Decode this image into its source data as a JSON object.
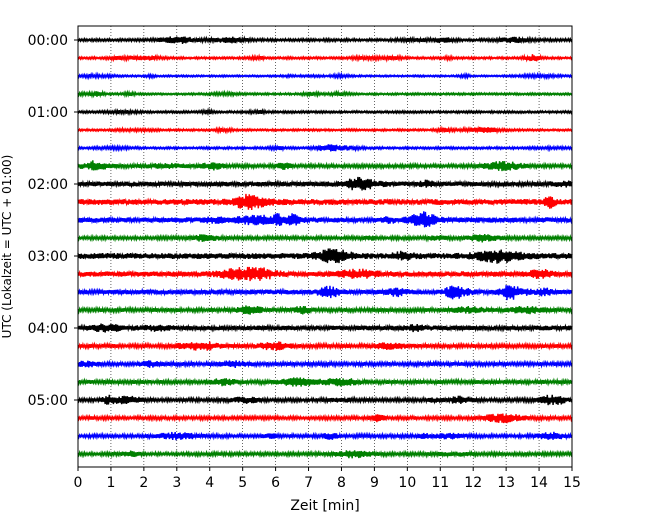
{
  "chart_data": {
    "type": "line",
    "title": "",
    "xlabel": "Zeit  [min]",
    "ylabel": "UTC (Lokalzeit = UTC + 01:00)",
    "xlim": [
      0,
      15
    ],
    "x_ticks": [
      "0",
      "1",
      "2",
      "3",
      "4",
      "5",
      "6",
      "7",
      "8",
      "9",
      "10",
      "11",
      "12",
      "13",
      "14",
      "15"
    ],
    "y_ticks": [
      "00:00",
      "01:00",
      "02:00",
      "03:00",
      "04:00",
      "05:00"
    ],
    "grid": "vertical dotted lines at each minute",
    "legend": "none",
    "trace_interval_min": 15,
    "trace_colors": [
      "#000000",
      "#ff0000",
      "#0000ff",
      "#008000"
    ],
    "series": [
      {
        "start": "00:00",
        "color": "#000000",
        "amplitude": 0.6
      },
      {
        "start": "00:15",
        "color": "#ff0000",
        "amplitude": 0.5
      },
      {
        "start": "00:30",
        "color": "#0000ff",
        "amplitude": 0.4
      },
      {
        "start": "00:45",
        "color": "#008000",
        "amplitude": 0.45
      },
      {
        "start": "01:00",
        "color": "#000000",
        "amplitude": 0.5
      },
      {
        "start": "01:15",
        "color": "#ff0000",
        "amplitude": 0.45
      },
      {
        "start": "01:30",
        "color": "#0000ff",
        "amplitude": 0.5
      },
      {
        "start": "01:45",
        "color": "#008000",
        "amplitude": 0.8
      },
      {
        "start": "02:00",
        "color": "#000000",
        "amplitude": 1.1
      },
      {
        "start": "02:15",
        "color": "#ff0000",
        "amplitude": 1.3
      },
      {
        "start": "02:30",
        "color": "#0000ff",
        "amplitude": 1.2
      },
      {
        "start": "02:45",
        "color": "#008000",
        "amplitude": 0.8
      },
      {
        "start": "03:00",
        "color": "#000000",
        "amplitude": 1.3
      },
      {
        "start": "03:15",
        "color": "#ff0000",
        "amplitude": 1.2
      },
      {
        "start": "03:30",
        "color": "#0000ff",
        "amplitude": 1.1
      },
      {
        "start": "03:45",
        "color": "#008000",
        "amplitude": 0.9
      },
      {
        "start": "04:00",
        "color": "#000000",
        "amplitude": 1.1
      },
      {
        "start": "04:15",
        "color": "#ff0000",
        "amplitude": 0.9
      },
      {
        "start": "04:30",
        "color": "#0000ff",
        "amplitude": 0.9
      },
      {
        "start": "04:45",
        "color": "#008000",
        "amplitude": 0.9
      },
      {
        "start": "05:00",
        "color": "#000000",
        "amplitude": 0.8
      },
      {
        "start": "05:15",
        "color": "#ff0000",
        "amplitude": 0.8
      },
      {
        "start": "05:30",
        "color": "#0000ff",
        "amplitude": 0.8
      },
      {
        "start": "05:45",
        "color": "#008000",
        "amplitude": 0.8
      }
    ]
  }
}
